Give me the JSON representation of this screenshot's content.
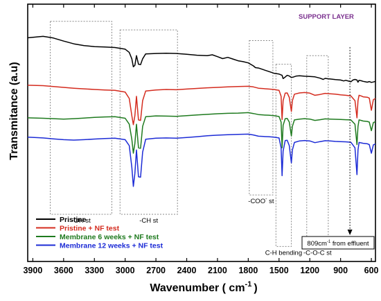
{
  "chart_data": {
    "type": "line",
    "title": "SUPPORT LAYER",
    "title_color": "#7a2f8e",
    "xlabel": "Wavenumber ( cm",
    "xlabel_sup": "-1",
    "xlabel_tail": ")",
    "ylabel": "Transmitance (a.u)",
    "xlim": [
      3950,
      560
    ],
    "x_reversed": true,
    "x_ticks": [
      3900,
      3600,
      3300,
      3000,
      2700,
      2400,
      2100,
      1800,
      1500,
      1200,
      900,
      600
    ],
    "y_ticks_shown": false,
    "series": [
      {
        "name": "Pristine",
        "color": "#000000",
        "x": [
          3950,
          3800,
          3700,
          3600,
          3500,
          3400,
          3300,
          3200,
          3100,
          3000,
          2960,
          2935,
          2920,
          2905,
          2890,
          2870,
          2850,
          2830,
          2800,
          2700,
          2600,
          2500,
          2400,
          2300,
          2200,
          2150,
          2100,
          2050,
          2000,
          1950,
          1900,
          1850,
          1800,
          1750,
          1730,
          1700,
          1650,
          1600,
          1550,
          1500,
          1470,
          1460,
          1440,
          1420,
          1400,
          1380,
          1360,
          1330,
          1300,
          1250,
          1200,
          1150,
          1100,
          1070,
          1050,
          1020,
          1000,
          950,
          900,
          870,
          850,
          820,
          800,
          780,
          760,
          740,
          730,
          720,
          700,
          680,
          660,
          640,
          620,
          600,
          580,
          560
        ],
        "y": [
          84.3,
          85.0,
          84.2,
          82.8,
          81.5,
          80.7,
          80.2,
          80.0,
          79.8,
          79.0,
          77.5,
          74.5,
          70.8,
          71.5,
          76.0,
          72.0,
          71.8,
          74.5,
          76.8,
          77.0,
          77.1,
          77.0,
          76.6,
          76.2,
          76.0,
          76.4,
          75.5,
          74.6,
          75.2,
          74.4,
          73.6,
          73.2,
          72.6,
          71.2,
          70.4,
          70.2,
          69.4,
          68.6,
          67.8,
          67.4,
          66.8,
          65.3,
          66.0,
          66.8,
          66.5,
          65.8,
          66.0,
          66.5,
          66.6,
          66.4,
          66.3,
          66.1,
          65.5,
          64.9,
          65.4,
          65.2,
          65.1,
          64.8,
          64.6,
          64.2,
          64.5,
          64.1,
          63.8,
          64.6,
          64.9,
          64.6,
          63.6,
          64.5,
          64.3,
          64.0,
          63.8,
          63.6,
          63.9,
          63.5,
          63.7,
          64.0
        ]
      },
      {
        "name": "Pristine + NF test",
        "color": "#d42b1e",
        "x": [
          3950,
          3800,
          3700,
          3600,
          3500,
          3400,
          3300,
          3200,
          3100,
          3000,
          2960,
          2935,
          2920,
          2905,
          2890,
          2870,
          2850,
          2830,
          2800,
          2700,
          2600,
          2500,
          2400,
          2300,
          2200,
          2100,
          2000,
          1900,
          1800,
          1750,
          1700,
          1650,
          1600,
          1550,
          1500,
          1480,
          1470,
          1460,
          1440,
          1420,
          1400,
          1380,
          1370,
          1350,
          1300,
          1250,
          1200,
          1150,
          1100,
          1050,
          1000,
          950,
          900,
          850,
          800,
          760,
          740,
          730,
          720,
          700,
          680,
          640,
          620,
          600,
          580,
          560
        ],
        "y": [
          62.2,
          62.0,
          61.6,
          61.2,
          60.8,
          60.5,
          60.2,
          60.0,
          59.8,
          59.0,
          56.0,
          48.0,
          43.8,
          48.0,
          57.0,
          46.0,
          45.8,
          55.0,
          59.5,
          60.0,
          60.2,
          60.1,
          60.4,
          60.7,
          61.0,
          61.2,
          61.4,
          61.6,
          61.7,
          61.4,
          60.8,
          60.6,
          60.4,
          60.2,
          59.8,
          57.0,
          46.2,
          55.0,
          58.5,
          58.6,
          56.5,
          50.0,
          55.0,
          58.0,
          58.6,
          58.8,
          58.5,
          57.5,
          57.9,
          58.4,
          58.2,
          58.0,
          57.7,
          57.5,
          57.2,
          55.0,
          47.0,
          55.0,
          57.5,
          57.2,
          56.8,
          56.6,
          56.2,
          50.5,
          55.5,
          56.0
        ]
      },
      {
        "name": "Membrane 6 weeks + NF test",
        "color": "#1e7a1e",
        "x": [
          3950,
          3800,
          3700,
          3600,
          3500,
          3400,
          3300,
          3200,
          3100,
          3000,
          2960,
          2935,
          2920,
          2905,
          2890,
          2870,
          2850,
          2830,
          2800,
          2700,
          2600,
          2500,
          2400,
          2300,
          2200,
          2100,
          2000,
          1900,
          1800,
          1750,
          1700,
          1650,
          1600,
          1550,
          1500,
          1480,
          1470,
          1460,
          1440,
          1420,
          1400,
          1380,
          1370,
          1350,
          1300,
          1250,
          1200,
          1150,
          1100,
          1050,
          1000,
          950,
          900,
          850,
          800,
          760,
          740,
          730,
          720,
          700,
          680,
          640,
          620,
          600,
          580,
          560
        ],
        "y": [
          47.0,
          46.8,
          46.6,
          46.4,
          46.6,
          46.9,
          47.2,
          47.4,
          47.5,
          46.8,
          44.0,
          37.0,
          30.5,
          35.0,
          44.0,
          33.0,
          32.8,
          43.0,
          47.5,
          47.9,
          47.8,
          47.7,
          48.0,
          48.3,
          48.6,
          48.9,
          49.1,
          49.2,
          49.4,
          49.0,
          48.5,
          48.3,
          48.2,
          48.0,
          47.6,
          45.0,
          33.0,
          43.5,
          46.6,
          46.7,
          45.0,
          38.5,
          43.0,
          46.0,
          46.4,
          46.6,
          46.4,
          45.8,
          46.1,
          46.5,
          46.4,
          46.3,
          46.2,
          46.1,
          46.0,
          44.0,
          34.5,
          43.0,
          46.0,
          45.8,
          45.5,
          45.3,
          45.0,
          41.0,
          44.8,
          45.2
        ]
      },
      {
        "name": "Membrane 12 weeks + NF test",
        "color": "#1c2bd6",
        "x": [
          3950,
          3800,
          3700,
          3600,
          3500,
          3400,
          3300,
          3200,
          3100,
          3000,
          2960,
          2935,
          2920,
          2905,
          2890,
          2870,
          2850,
          2830,
          2800,
          2700,
          2600,
          2500,
          2400,
          2300,
          2200,
          2100,
          2000,
          1900,
          1800,
          1750,
          1700,
          1650,
          1600,
          1550,
          1500,
          1480,
          1470,
          1460,
          1440,
          1420,
          1400,
          1380,
          1370,
          1350,
          1300,
          1250,
          1200,
          1150,
          1100,
          1050,
          1000,
          950,
          900,
          850,
          800,
          760,
          740,
          730,
          720,
          700,
          680,
          640,
          620,
          600,
          580,
          560
        ],
        "y": [
          38.0,
          37.6,
          37.2,
          36.8,
          36.6,
          36.8,
          37.1,
          37.3,
          37.5,
          36.8,
          34.0,
          24.0,
          15.0,
          21.0,
          32.0,
          19.5,
          19.3,
          31.0,
          37.0,
          37.5,
          37.6,
          37.5,
          37.8,
          38.2,
          38.6,
          38.9,
          39.1,
          39.3,
          39.4,
          39.0,
          38.4,
          38.3,
          38.2,
          38.0,
          37.6,
          33.0,
          20.0,
          31.5,
          36.4,
          36.5,
          34.0,
          26.0,
          32.0,
          35.5,
          36.2,
          36.4,
          36.2,
          35.4,
          35.9,
          36.3,
          36.2,
          36.0,
          35.9,
          35.8,
          35.6,
          33.0,
          20.5,
          32.0,
          35.5,
          35.3,
          35.1,
          34.9,
          34.5,
          30.5,
          34.4,
          34.8
        ]
      }
    ],
    "regions": [
      {
        "label": "-OH st",
        "x0": 3730,
        "x1": 3130,
        "ytop": 92,
        "ybot": 2
      },
      {
        "label": "-CH st",
        "x0": 3050,
        "x1": 2490,
        "ytop": 88,
        "ybot": 2
      },
      {
        "label": "-COO- st",
        "label_main": "-COO",
        "label_sup": "-",
        "label_tail": " st",
        "x0": 1790,
        "x1": 1560,
        "ytop": 83,
        "ybot": 11
      },
      {
        "label": "C-H bending",
        "x0": 1530,
        "x1": 1380,
        "ytop": 72,
        "ybot": -13
      },
      {
        "label": "-C-O-C st",
        "x0": 1230,
        "x1": 1020,
        "ytop": 76,
        "ybot": -13
      }
    ],
    "annotation": {
      "label": "809cm",
      "label_sup": "-1",
      "label_tail": " from effluent",
      "x": 809
    },
    "legend_position": "bottom-left"
  }
}
